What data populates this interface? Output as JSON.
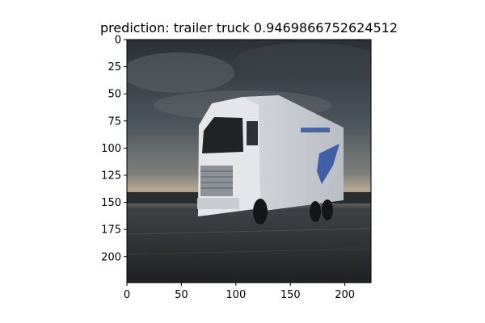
{
  "figure": {
    "title": "prediction: trailer truck 0.9469866752624512",
    "image_subject": "white fuel-cell box truck on a cobblestone road under a dark cloudy sky"
  },
  "chart_data": {
    "type": "image",
    "title": "prediction: trailer truck 0.9469866752624512",
    "xlim": [
      0,
      224
    ],
    "ylim": [
      224,
      0
    ],
    "x_ticks": [
      0,
      50,
      100,
      150,
      200
    ],
    "y_ticks": [
      0,
      25,
      50,
      75,
      100,
      125,
      150,
      175,
      200
    ],
    "x_tick_labels": [
      "0",
      "50",
      "100",
      "150",
      "200"
    ],
    "y_tick_labels": [
      "0",
      "25",
      "50",
      "75",
      "100",
      "125",
      "150",
      "175",
      "200"
    ]
  }
}
